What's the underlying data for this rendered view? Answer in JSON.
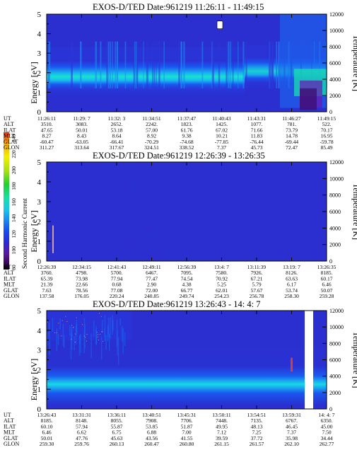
{
  "colorbar": {
    "label": "Second Harmonic Current",
    "ticks": [
      "240",
      "220",
      "200",
      "180",
      "160",
      "140",
      "120",
      "100",
      "80"
    ],
    "colors": [
      "#000000",
      "#3a0a5a",
      "#5a1aa0",
      "#2a2ad8",
      "#1a4cf0",
      "#1a8af0",
      "#19c8e8",
      "#18e0a8",
      "#20d030",
      "#a8e018",
      "#f0f000",
      "#f8a800",
      "#f03010"
    ]
  },
  "chart_data": [
    {
      "type": "heatmap",
      "title": "EXOS-D/TED   Date:961219  11:26:11 - 11:49:15",
      "ylabel": "Energy [eV]",
      "y2label": "Temperature [K]",
      "ylim": [
        0,
        5
      ],
      "y2lim": [
        0,
        12000
      ],
      "yticks": [
        "0",
        "1",
        "2",
        "3",
        "4",
        "5"
      ],
      "y2ticks": [
        "0",
        "2000",
        "4000",
        "6000",
        "8000",
        "10000",
        "12000"
      ],
      "table": {
        "row_labels": [
          "UT",
          "ALT",
          "ILAT",
          "MLT",
          "GLAT",
          "GLON"
        ],
        "columns": [
          [
            "11:26:11",
            "3510.",
            "47.65",
            "8.27",
            "-60.47",
            "311.27"
          ],
          [
            "11:29: 7",
            "3083.",
            "50.01",
            "8.43",
            "-63.05",
            "313.64"
          ],
          [
            "11:32: 3",
            "2652.",
            "53.18",
            "8.64",
            "-66.41",
            "317.67"
          ],
          [
            "11:34:51",
            "2242.",
            "57.00",
            "8.92",
            "-70.29",
            "324.51"
          ],
          [
            "11:37:47",
            "1823.",
            "61.76",
            "9.38",
            "-74.68",
            "338.52"
          ],
          [
            "11:40:43",
            "1425.",
            "67.02",
            "10.21",
            "-77.85",
            "7.37"
          ],
          [
            "11:43:31",
            "1077.",
            "71.66",
            "11.83",
            "-76.44",
            "45.73"
          ],
          [
            "11:46:27",
            "781.",
            "73.79",
            "14.78",
            "-69.44",
            "72.47"
          ],
          [
            "11:49:15",
            "522.",
            "70.17",
            "16.95",
            "-59.78",
            "85.49"
          ]
        ]
      }
    },
    {
      "type": "heatmap",
      "title": "EXOS-D/TED   Date:961219  12:26:39 - 13:26:35",
      "ylabel": "Energy [eV]",
      "y2label": "Temperature [K]",
      "ylim": [
        0,
        5
      ],
      "y2lim": [
        0,
        12000
      ],
      "yticks": [
        "0",
        "1",
        "2",
        "3",
        "4",
        "5"
      ],
      "y2ticks": [
        "0",
        "2000",
        "4000",
        "6000",
        "8000",
        "10000",
        "12000"
      ],
      "table": {
        "row_labels": [
          "UT",
          "ALT",
          "ILAT",
          "MLT",
          "GLAT",
          "GLON"
        ],
        "columns": [
          [
            "12:26:39",
            "3760.",
            "65.39",
            "21.39",
            "7.63",
            "137.58"
          ],
          [
            "12:34:15",
            "4798.",
            "73.98",
            "22.66",
            "78.56",
            "176.05"
          ],
          [
            "12:41:43",
            "5700.",
            "77.94",
            "0.68",
            "77.08",
            "220.24"
          ],
          [
            "12:49:11",
            "6467.",
            "77.47",
            "2.90",
            "72.00",
            "240.85"
          ],
          [
            "12:56:39",
            "7095.",
            "74.54",
            "4.38",
            "66.77",
            "249.74"
          ],
          [
            "13:4: 7",
            "7580.",
            "70.92",
            "5.25",
            "62.01",
            "254.23"
          ],
          [
            "13:11:39",
            "7926.",
            "67.21",
            "5.79",
            "57.67",
            "256.78"
          ],
          [
            "13:19: 7",
            "8126.",
            "63.63",
            "6.17",
            "53.74",
            "258.30"
          ],
          [
            "13:26:35",
            "8185.",
            "60.17",
            "6.46",
            "50.07",
            "259.28"
          ]
        ]
      }
    },
    {
      "type": "heatmap",
      "title": "EXOS-D/TED   Date:961219  13:26:43 - 14: 4: 7",
      "ylabel": "Energy [eV]",
      "y2label": "Temperature [K]",
      "ylim": [
        0,
        5
      ],
      "y2lim": [
        0,
        12000
      ],
      "yticks": [
        "0",
        "1",
        "2",
        "3",
        "4",
        "5"
      ],
      "y2ticks": [
        "0",
        "2000",
        "4000",
        "6000",
        "8000",
        "10000",
        "12000"
      ],
      "table": {
        "row_labels": [
          "UT",
          "ALT",
          "ILAT",
          "MLT",
          "GLAT",
          "GLON"
        ],
        "columns": [
          [
            "13:26:43",
            "8185.",
            "60.10",
            "6.46",
            "50.01",
            "259.30"
          ],
          [
            "13:31:31",
            "8148.",
            "57.94",
            "6.62",
            "47.76",
            "259.76"
          ],
          [
            "13:36:11",
            "8055.",
            "55.87",
            "6.75",
            "45.63",
            "260.13"
          ],
          [
            "13:40:51",
            "7908.",
            "53.85",
            "6.88",
            "43.56",
            "260.47"
          ],
          [
            "13:45:31",
            "7706.",
            "51.87",
            "7.00",
            "41.55",
            "260.80"
          ],
          [
            "13:50:11",
            "7448.",
            "49.95",
            "7.12",
            "39.59",
            "261.15"
          ],
          [
            "13:54:51",
            "7135.",
            "48.13",
            "7.25",
            "37.72",
            "261.57"
          ],
          [
            "13:59:31",
            "6767.",
            "46.45",
            "7.37",
            "35.98",
            "262.10"
          ],
          [
            "14: 4: 7",
            "6350.",
            "45.00",
            "7.50",
            "34.44",
            "262.77"
          ]
        ]
      }
    }
  ]
}
